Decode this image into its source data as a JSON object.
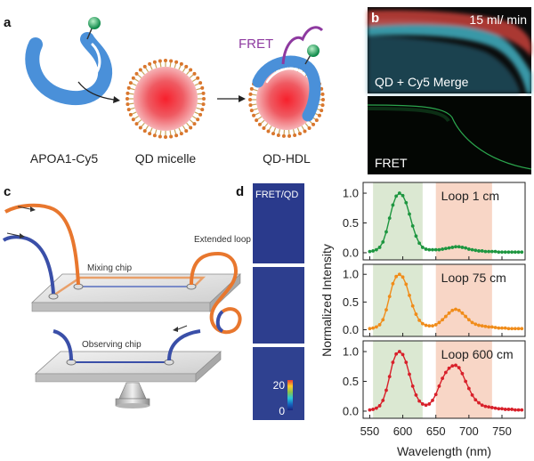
{
  "panels": {
    "a": {
      "letter": "a",
      "labels": {
        "apoa1": "APOA1-Cy5",
        "micelle": "QD micelle",
        "hdl": "QD-HDL",
        "fret": "FRET"
      }
    },
    "b": {
      "letter": "b",
      "flow_rate": "15 ml/ min",
      "top_label": "QD + Cy5 Merge",
      "bottom_label": "FRET"
    },
    "c": {
      "letter": "c",
      "labels": {
        "mixing_chip": "Mixing chip",
        "extended_loop": "Extended loop",
        "observing_chip": "Observing chip"
      }
    },
    "d": {
      "letter": "d",
      "map_label": "FRET/QD",
      "colorbar": {
        "max": "20",
        "min": "0"
      }
    }
  },
  "chart_data": {
    "type": "line",
    "xlabel": "Wavelength (nm)",
    "ylabel": "Normalized Intensity",
    "xlim": [
      540,
      785
    ],
    "ylim": [
      -0.12,
      1.18
    ],
    "xticks": [
      550,
      600,
      650,
      700,
      750
    ],
    "yticks": [
      0.0,
      0.5,
      1.0
    ],
    "shaded_bands": [
      {
        "from": 555,
        "to": 630,
        "color": "#dbe8d2"
      },
      {
        "from": 650,
        "to": 735,
        "color": "#f8d6c6"
      }
    ],
    "x": [
      550,
      555,
      560,
      565,
      570,
      575,
      580,
      585,
      590,
      595,
      600,
      605,
      610,
      615,
      620,
      625,
      630,
      635,
      640,
      645,
      650,
      655,
      660,
      665,
      670,
      675,
      680,
      685,
      690,
      695,
      700,
      705,
      710,
      715,
      720,
      725,
      730,
      735,
      740,
      745,
      750,
      755,
      760,
      765,
      770,
      775,
      780
    ],
    "series": [
      {
        "name": "Loop 1 cm",
        "color": "#1e9640",
        "values": [
          0.02,
          0.03,
          0.05,
          0.09,
          0.18,
          0.35,
          0.58,
          0.8,
          0.95,
          1.0,
          0.96,
          0.84,
          0.65,
          0.45,
          0.28,
          0.16,
          0.09,
          0.06,
          0.05,
          0.05,
          0.05,
          0.05,
          0.06,
          0.07,
          0.08,
          0.09,
          0.1,
          0.1,
          0.09,
          0.08,
          0.06,
          0.05,
          0.04,
          0.03,
          0.03,
          0.02,
          0.02,
          0.02,
          0.02,
          0.01,
          0.01,
          0.01,
          0.01,
          0.01,
          0.01,
          0.01,
          0.01
        ]
      },
      {
        "name": "Loop 75 cm",
        "color": "#f08c1a",
        "values": [
          0.02,
          0.03,
          0.05,
          0.09,
          0.18,
          0.36,
          0.6,
          0.83,
          0.96,
          1.0,
          0.95,
          0.82,
          0.62,
          0.43,
          0.28,
          0.17,
          0.11,
          0.08,
          0.07,
          0.07,
          0.09,
          0.13,
          0.18,
          0.24,
          0.3,
          0.35,
          0.37,
          0.35,
          0.3,
          0.24,
          0.18,
          0.13,
          0.1,
          0.08,
          0.07,
          0.06,
          0.05,
          0.05,
          0.04,
          0.03,
          0.03,
          0.03,
          0.02,
          0.02,
          0.02,
          0.02,
          0.02
        ]
      },
      {
        "name": "Loop 600 cm",
        "color": "#d8202a",
        "values": [
          0.02,
          0.03,
          0.05,
          0.09,
          0.18,
          0.35,
          0.58,
          0.82,
          0.96,
          1.0,
          0.95,
          0.82,
          0.62,
          0.42,
          0.27,
          0.17,
          0.12,
          0.1,
          0.12,
          0.18,
          0.28,
          0.42,
          0.55,
          0.65,
          0.72,
          0.76,
          0.77,
          0.73,
          0.63,
          0.5,
          0.38,
          0.27,
          0.19,
          0.14,
          0.1,
          0.08,
          0.07,
          0.06,
          0.05,
          0.04,
          0.04,
          0.03,
          0.03,
          0.03,
          0.02,
          0.02,
          0.02
        ]
      }
    ]
  }
}
